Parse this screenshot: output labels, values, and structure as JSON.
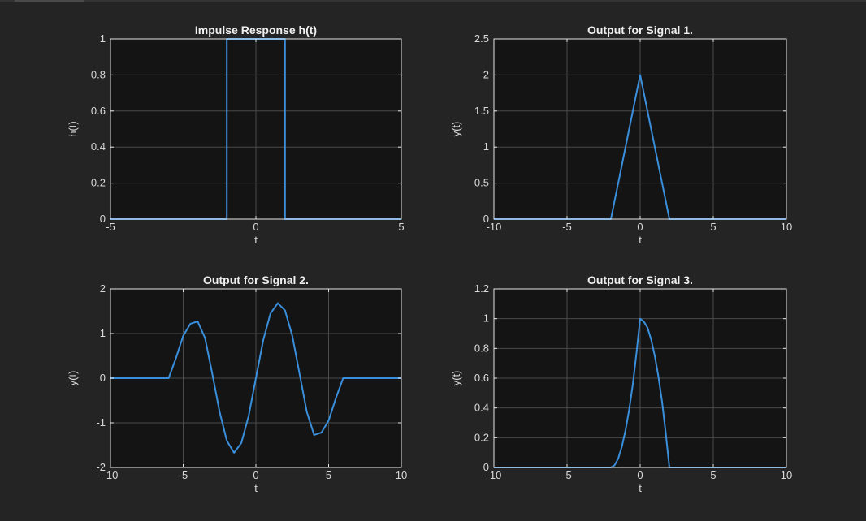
{
  "figure": {
    "background": "#242424",
    "axes_background": "#141414",
    "line_color": "#3a8fdc",
    "text_color": "#d9d9d9",
    "grid_color": "#4a4a4a"
  },
  "chart_data": [
    {
      "type": "line",
      "title": "Impulse Response h(t)",
      "xlabel": "t",
      "ylabel": "h(t)",
      "xlim": [
        -5,
        5
      ],
      "ylim": [
        0,
        1
      ],
      "xticks": [
        -5,
        0,
        5
      ],
      "yticks": [
        0,
        0.2,
        0.4,
        0.6,
        0.8,
        1
      ],
      "grid": true,
      "series": [
        {
          "x": [
            -5,
            -1,
            -1,
            1,
            1,
            5
          ],
          "y": [
            0,
            0,
            1,
            1,
            0,
            0
          ]
        }
      ]
    },
    {
      "type": "line",
      "title": "Output for Signal 1.",
      "xlabel": "t",
      "ylabel": "y(t)",
      "xlim": [
        -10,
        10
      ],
      "ylim": [
        0,
        2.5
      ],
      "xticks": [
        -10,
        -5,
        0,
        5,
        10
      ],
      "yticks": [
        0,
        0.5,
        1,
        1.5,
        2,
        2.5
      ],
      "grid": true,
      "series": [
        {
          "x": [
            -10,
            -2,
            0,
            2,
            10
          ],
          "y": [
            0,
            0,
            2,
            0,
            0
          ]
        }
      ]
    },
    {
      "type": "line",
      "title": "Output for Signal 2.",
      "xlabel": "t",
      "ylabel": "y(t)",
      "xlim": [
        -10,
        10
      ],
      "ylim": [
        -2,
        2
      ],
      "xticks": [
        -10,
        -5,
        0,
        5,
        10
      ],
      "yticks": [
        -2,
        -1,
        0,
        1,
        2
      ],
      "grid": true,
      "series": [
        {
          "x": [
            -10,
            -6,
            -5.5,
            -5,
            -4.5,
            -4,
            -3.5,
            -3,
            -2.5,
            -2,
            -1.5,
            -1,
            -0.5,
            0,
            0.5,
            1,
            1.5,
            2,
            2.5,
            3,
            3.5,
            4,
            4.5,
            5,
            5.5,
            6,
            10
          ],
          "y": [
            0,
            0,
            0.45,
            0.95,
            1.22,
            1.27,
            0.9,
            0.1,
            -0.75,
            -1.4,
            -1.67,
            -1.45,
            -0.85,
            0,
            0.85,
            1.45,
            1.68,
            1.52,
            0.95,
            0.1,
            -0.75,
            -1.27,
            -1.22,
            -0.95,
            -0.45,
            0,
            0
          ]
        }
      ]
    },
    {
      "type": "line",
      "title": "Output for Signal 3.",
      "xlabel": "t",
      "ylabel": "y(t)",
      "xlim": [
        -10,
        10
      ],
      "ylim": [
        0,
        1.2
      ],
      "xticks": [
        -10,
        -5,
        0,
        5,
        10
      ],
      "yticks": [
        0,
        0.2,
        0.4,
        0.6,
        0.8,
        1,
        1.2
      ],
      "grid": true,
      "series": [
        {
          "x": [
            -10,
            -2,
            -1.75,
            -1.5,
            -1.25,
            -1,
            -0.75,
            -0.5,
            -0.25,
            0,
            0.25,
            0.5,
            0.75,
            1,
            1.25,
            1.5,
            1.75,
            2,
            10
          ],
          "y": [
            0,
            0,
            0.015,
            0.06,
            0.14,
            0.25,
            0.39,
            0.56,
            0.77,
            1.0,
            0.98,
            0.94,
            0.86,
            0.75,
            0.61,
            0.44,
            0.23,
            0,
            0
          ]
        }
      ]
    }
  ]
}
